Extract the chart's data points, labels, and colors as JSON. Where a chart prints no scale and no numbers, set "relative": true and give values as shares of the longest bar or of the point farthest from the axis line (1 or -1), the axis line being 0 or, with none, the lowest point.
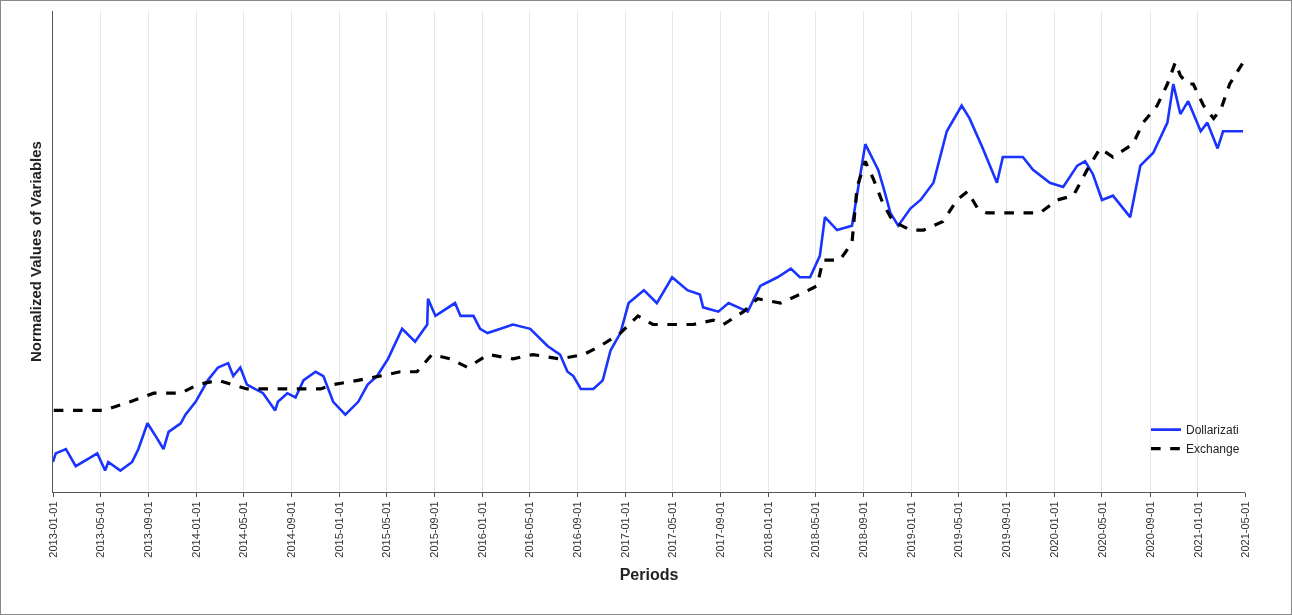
{
  "chart_data": {
    "type": "line",
    "xlabel": "Periods",
    "ylabel": "Normalized Values of Variables",
    "relative": true,
    "grid": "x",
    "legend": "bottom right",
    "marker": "none",
    "xlim": [
      "2013-01-01",
      "2021-05-01"
    ],
    "xticks": [
      "2013-01-01",
      "2013-05-01",
      "2013-09-01",
      "2014-01-01",
      "2014-05-01",
      "2014-09-01",
      "2015-01-01",
      "2015-05-01",
      "2015-09-01",
      "2016-01-01",
      "2016-05-01",
      "2016-09-01",
      "2017-01-01",
      "2017-05-01",
      "2017-09-01",
      "2018-01-01",
      "2018-05-01",
      "2018-09-01",
      "2019-01-01",
      "2019-05-01",
      "2019-09-01",
      "2020-01-01",
      "2020-05-01",
      "2020-09-01",
      "2021-01-01",
      "2021-05-01"
    ],
    "series": [
      {
        "name": "Dollarizati",
        "color": "#1a33ff",
        "line_style": "solid",
        "x": [
          "2013-01-01",
          "2013-01-08",
          "2013-02-03",
          "2013-02-28",
          "2013-04-06",
          "2013-04-24",
          "2013-05-14",
          "2013-05-22",
          "2013-06-22",
          "2013-07-22",
          "2013-08-07",
          "2013-08-30",
          "2013-09-20",
          "2013-10-10",
          "2013-10-23",
          "2013-11-23",
          "2013-12-05",
          "2013-12-31",
          "2014-01-31",
          "2014-02-26",
          "2014-03-24",
          "2014-04-06",
          "2014-04-24",
          "2014-05-11",
          "2014-06-21",
          "2014-07-22",
          "2014-07-29",
          "2014-08-22",
          "2014-09-12",
          "2014-10-02",
          "2014-11-02",
          "2014-11-22",
          "2014-12-17",
          "2015-01-17",
          "2015-02-19",
          "2015-03-15",
          "2015-04-08",
          "2015-05-06",
          "2015-06-11",
          "2015-07-14",
          "2015-08-14",
          "2015-08-16",
          "2015-09-04",
          "2015-10-24",
          "2015-11-07",
          "2015-12-10",
          "2015-12-27",
          "2016-01-15",
          "2016-02-17",
          "2016-03-20",
          "2016-05-03",
          "2016-06-16",
          "2016-07-18",
          "2016-08-06",
          "2016-08-21",
          "2016-09-09",
          "2016-10-11",
          "2016-11-04",
          "2016-11-24",
          "2016-12-19",
          "2017-01-09",
          "2017-02-17",
          "2017-03-22",
          "2017-04-30",
          "2017-06-08",
          "2017-07-10",
          "2017-07-18",
          "2017-08-26",
          "2017-09-21",
          "2017-11-09",
          "2017-12-11",
          "2018-01-24",
          "2018-02-27",
          "2018-03-22",
          "2018-04-17",
          "2018-05-12",
          "2018-05-25",
          "2018-06-25",
          "2018-08-02",
          "2018-09-05",
          "2018-10-08",
          "2018-10-21",
          "2018-11-08",
          "2018-11-28",
          "2018-12-29",
          "2019-01-24",
          "2019-02-26",
          "2019-04-01",
          "2019-05-09",
          "2019-05-29",
          "2019-07-02",
          "2019-08-07",
          "2019-08-22",
          "2019-10-12",
          "2019-11-07",
          "2019-12-20",
          "2020-01-23",
          "2020-02-28",
          "2020-03-19",
          "2020-04-08",
          "2020-05-01",
          "2020-05-29",
          "2020-07-12",
          "2020-08-07",
          "2020-09-09",
          "2020-10-15",
          "2020-10-30",
          "2020-11-17",
          "2020-12-07",
          "2021-01-08",
          "2021-01-25",
          "2021-02-20",
          "2021-03-06",
          "2021-04-26"
        ],
        "values": [
          0.07,
          0.09,
          0.1,
          0.06,
          0.08,
          0.09,
          0.05,
          0.07,
          0.05,
          0.07,
          0.1,
          0.16,
          0.13,
          0.1,
          0.14,
          0.16,
          0.18,
          0.21,
          0.26,
          0.29,
          0.3,
          0.27,
          0.29,
          0.25,
          0.23,
          0.19,
          0.21,
          0.23,
          0.22,
          0.26,
          0.28,
          0.27,
          0.21,
          0.18,
          0.21,
          0.25,
          0.27,
          0.31,
          0.38,
          0.35,
          0.39,
          0.45,
          0.41,
          0.44,
          0.41,
          0.41,
          0.38,
          0.37,
          0.38,
          0.39,
          0.38,
          0.34,
          0.32,
          0.28,
          0.27,
          0.24,
          0.24,
          0.26,
          0.33,
          0.37,
          0.44,
          0.47,
          0.44,
          0.5,
          0.47,
          0.46,
          0.43,
          0.42,
          0.44,
          0.42,
          0.48,
          0.5,
          0.52,
          0.5,
          0.5,
          0.55,
          0.64,
          0.61,
          0.62,
          0.81,
          0.75,
          0.71,
          0.65,
          0.62,
          0.66,
          0.68,
          0.72,
          0.84,
          0.9,
          0.87,
          0.8,
          0.72,
          0.78,
          0.78,
          0.75,
          0.72,
          0.71,
          0.76,
          0.77,
          0.74,
          0.68,
          0.69,
          0.64,
          0.76,
          0.79,
          0.86,
          0.95,
          0.88,
          0.91,
          0.84,
          0.86,
          0.8,
          0.84,
          0.84
        ]
      },
      {
        "name": "Exchange",
        "color": "#000000",
        "line_style": "dashed",
        "x": [
          "2013-01-03",
          "2013-03-29",
          "2013-05-09",
          "2013-07-17",
          "2013-09-15",
          "2013-11-23",
          "2014-01-06",
          "2014-02-26",
          "2014-05-11",
          "2014-07-17",
          "2014-09-17",
          "2014-11-15",
          "2014-12-17",
          "2015-02-18",
          "2015-04-16",
          "2015-06-06",
          "2015-07-19",
          "2015-08-26",
          "2015-10-12",
          "2015-11-25",
          "2016-01-17",
          "2016-03-20",
          "2016-05-10",
          "2016-07-18",
          "2016-09-16",
          "2016-10-29",
          "2016-12-19",
          "2017-02-02",
          "2017-03-12",
          "2017-04-30",
          "2017-06-23",
          "2017-08-13",
          "2017-09-08",
          "2017-10-29",
          "2017-12-04",
          "2018-02-01",
          "2018-03-22",
          "2018-05-05",
          "2018-05-20",
          "2018-07-02",
          "2018-08-02",
          "2018-08-15",
          "2018-09-05",
          "2018-09-25",
          "2018-10-21",
          "2018-11-15",
          "2018-12-29",
          "2019-02-01",
          "2019-03-22",
          "2019-04-27",
          "2019-05-24",
          "2019-06-19",
          "2019-07-12",
          "2019-08-22",
          "2019-10-05",
          "2019-11-25",
          "2020-01-08",
          "2020-02-18",
          "2020-03-24",
          "2020-04-26",
          "2020-05-29",
          "2020-07-19",
          "2020-08-14",
          "2020-09-19",
          "2020-10-15",
          "2020-11-04",
          "2020-11-17",
          "2020-12-05",
          "2020-12-20",
          "2021-01-15",
          "2021-02-10",
          "2021-02-28",
          "2021-03-23",
          "2021-04-26"
        ],
        "values": [
          0.19,
          0.19,
          0.19,
          0.21,
          0.23,
          0.23,
          0.25,
          0.26,
          0.24,
          0.24,
          0.24,
          0.24,
          0.25,
          0.26,
          0.27,
          0.28,
          0.28,
          0.32,
          0.31,
          0.29,
          0.32,
          0.31,
          0.32,
          0.31,
          0.32,
          0.34,
          0.37,
          0.41,
          0.39,
          0.39,
          0.39,
          0.4,
          0.39,
          0.42,
          0.45,
          0.44,
          0.46,
          0.48,
          0.54,
          0.54,
          0.58,
          0.71,
          0.77,
          0.73,
          0.67,
          0.63,
          0.61,
          0.61,
          0.63,
          0.68,
          0.7,
          0.66,
          0.65,
          0.65,
          0.65,
          0.65,
          0.68,
          0.69,
          0.75,
          0.8,
          0.78,
          0.81,
          0.86,
          0.9,
          0.95,
          1.0,
          0.97,
          0.95,
          0.95,
          0.9,
          0.87,
          0.89,
          0.95,
          1.0
        ]
      }
    ]
  }
}
